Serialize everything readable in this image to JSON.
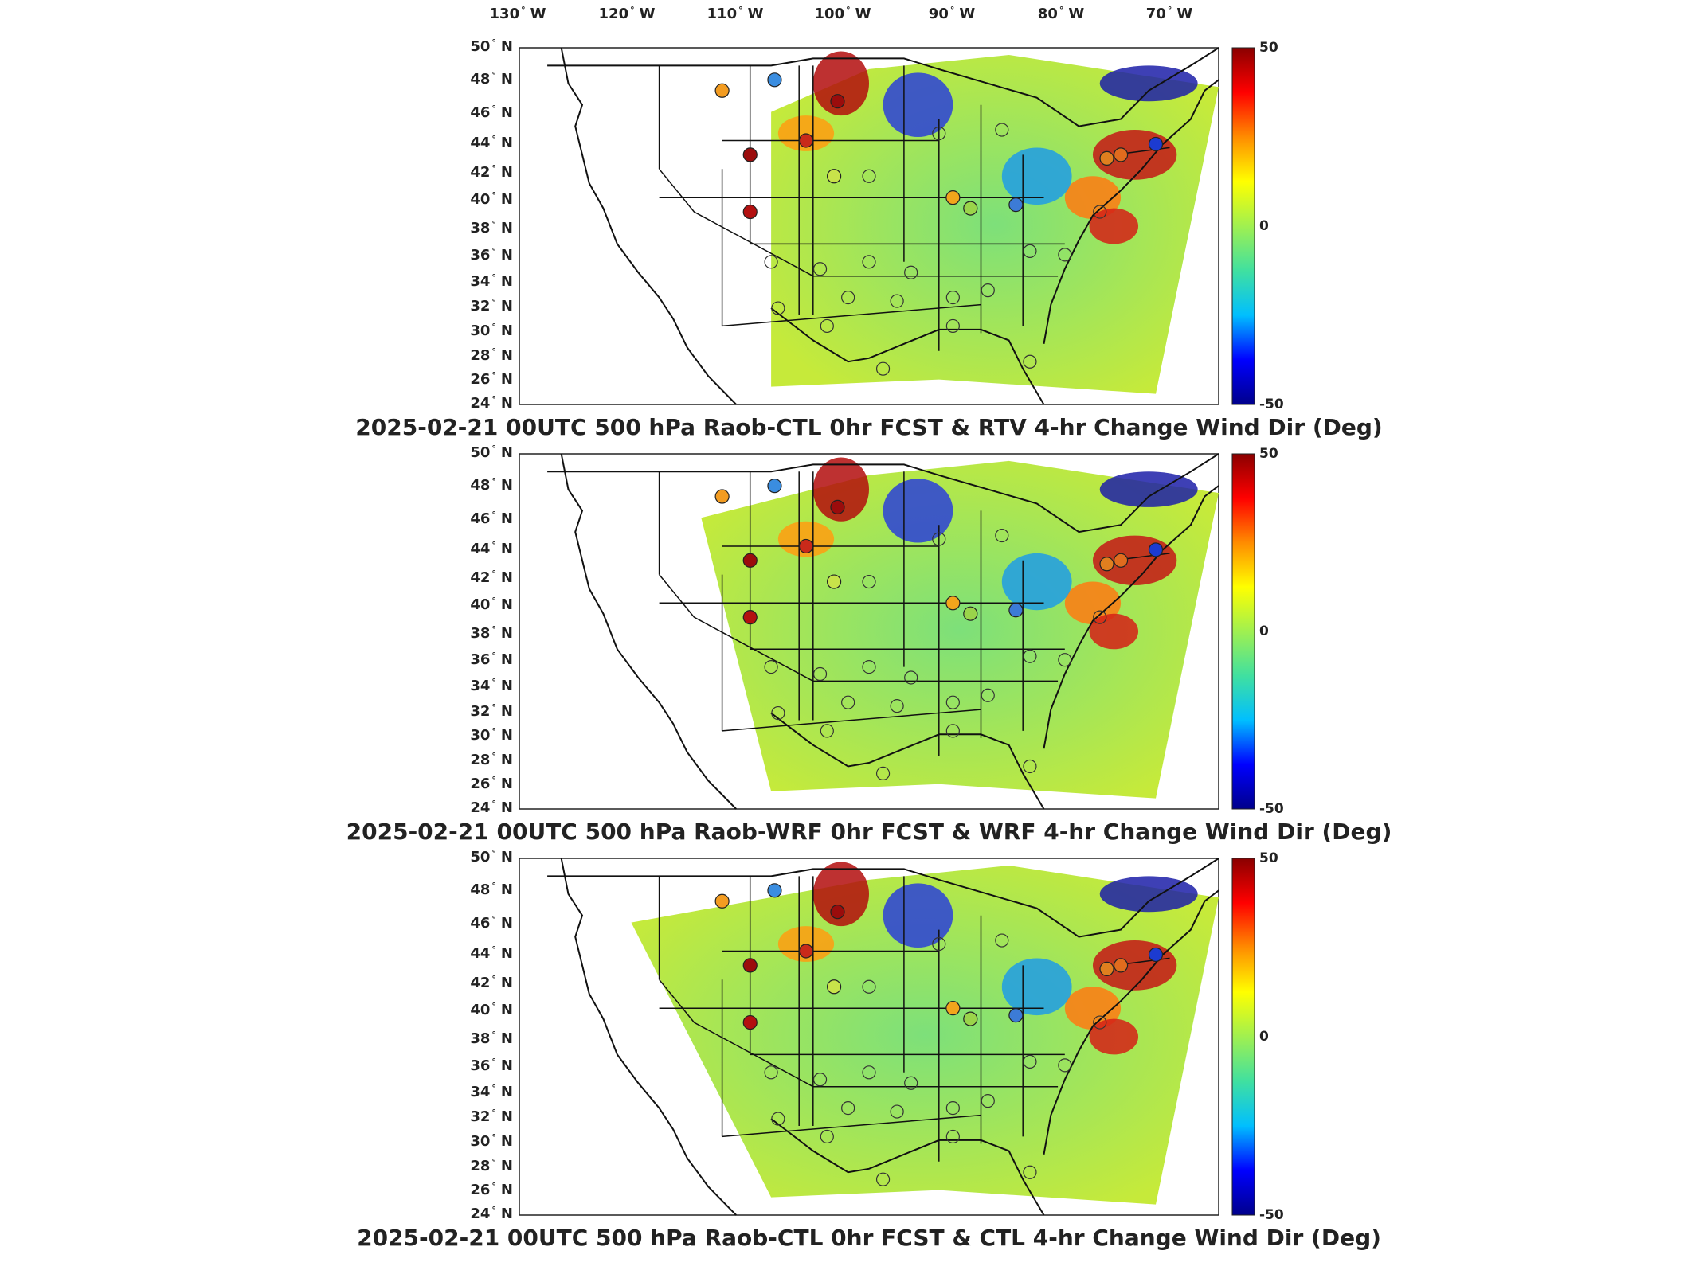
{
  "lon_labels": [
    "130",
    "120",
    "110",
    "100",
    "90",
    "80",
    "70"
  ],
  "lon_suffix": "W",
  "lat_labels": [
    "50",
    "48",
    "46",
    "44",
    "42",
    "40",
    "38",
    "36",
    "34",
    "32",
    "30",
    "28",
    "26",
    "24"
  ],
  "lat_suffix": "N",
  "colorbar": {
    "max_label": "50",
    "mid_label": "0",
    "min_label": "-50",
    "colors": [
      "#00008b",
      "#0000ff",
      "#00bfff",
      "#40e0a0",
      "#a0f050",
      "#ffff00",
      "#ff8c00",
      "#ff0000",
      "#8b0000"
    ]
  },
  "panels": [
    {
      "title": "2025-02-21 00UTC 500 hPa Raob-CTL 0hr FCST & RTV 4-hr Change Wind Dir (Deg)"
    },
    {
      "title": "2025-02-21 00UTC 500 hPa Raob-WRF 0hr FCST & WRF 4-hr Change Wind Dir (Deg)"
    },
    {
      "title": "2025-02-21 00UTC 500 hPa Raob-CTL 0hr FCST & CTL 4-hr Change Wind Dir (Deg)"
    }
  ],
  "stations": [
    {
      "color": "#f39c21"
    },
    {
      "color": "#3a8de0"
    },
    {
      "color": "#9b0c0c"
    },
    {
      "color": "#b31010"
    },
    {
      "color": "#9b0c0c"
    },
    {
      "color": "#c92a1a"
    },
    {
      "color": "#9ad44a"
    },
    {
      "color": "#e07f1f"
    },
    {
      "color": "#f2a51c"
    },
    {
      "color": "#e06c1e"
    },
    {
      "color": "#3c7bd6"
    },
    {
      "color": "#1c3bd1"
    },
    {
      "color": "#c8e34a"
    }
  ]
}
